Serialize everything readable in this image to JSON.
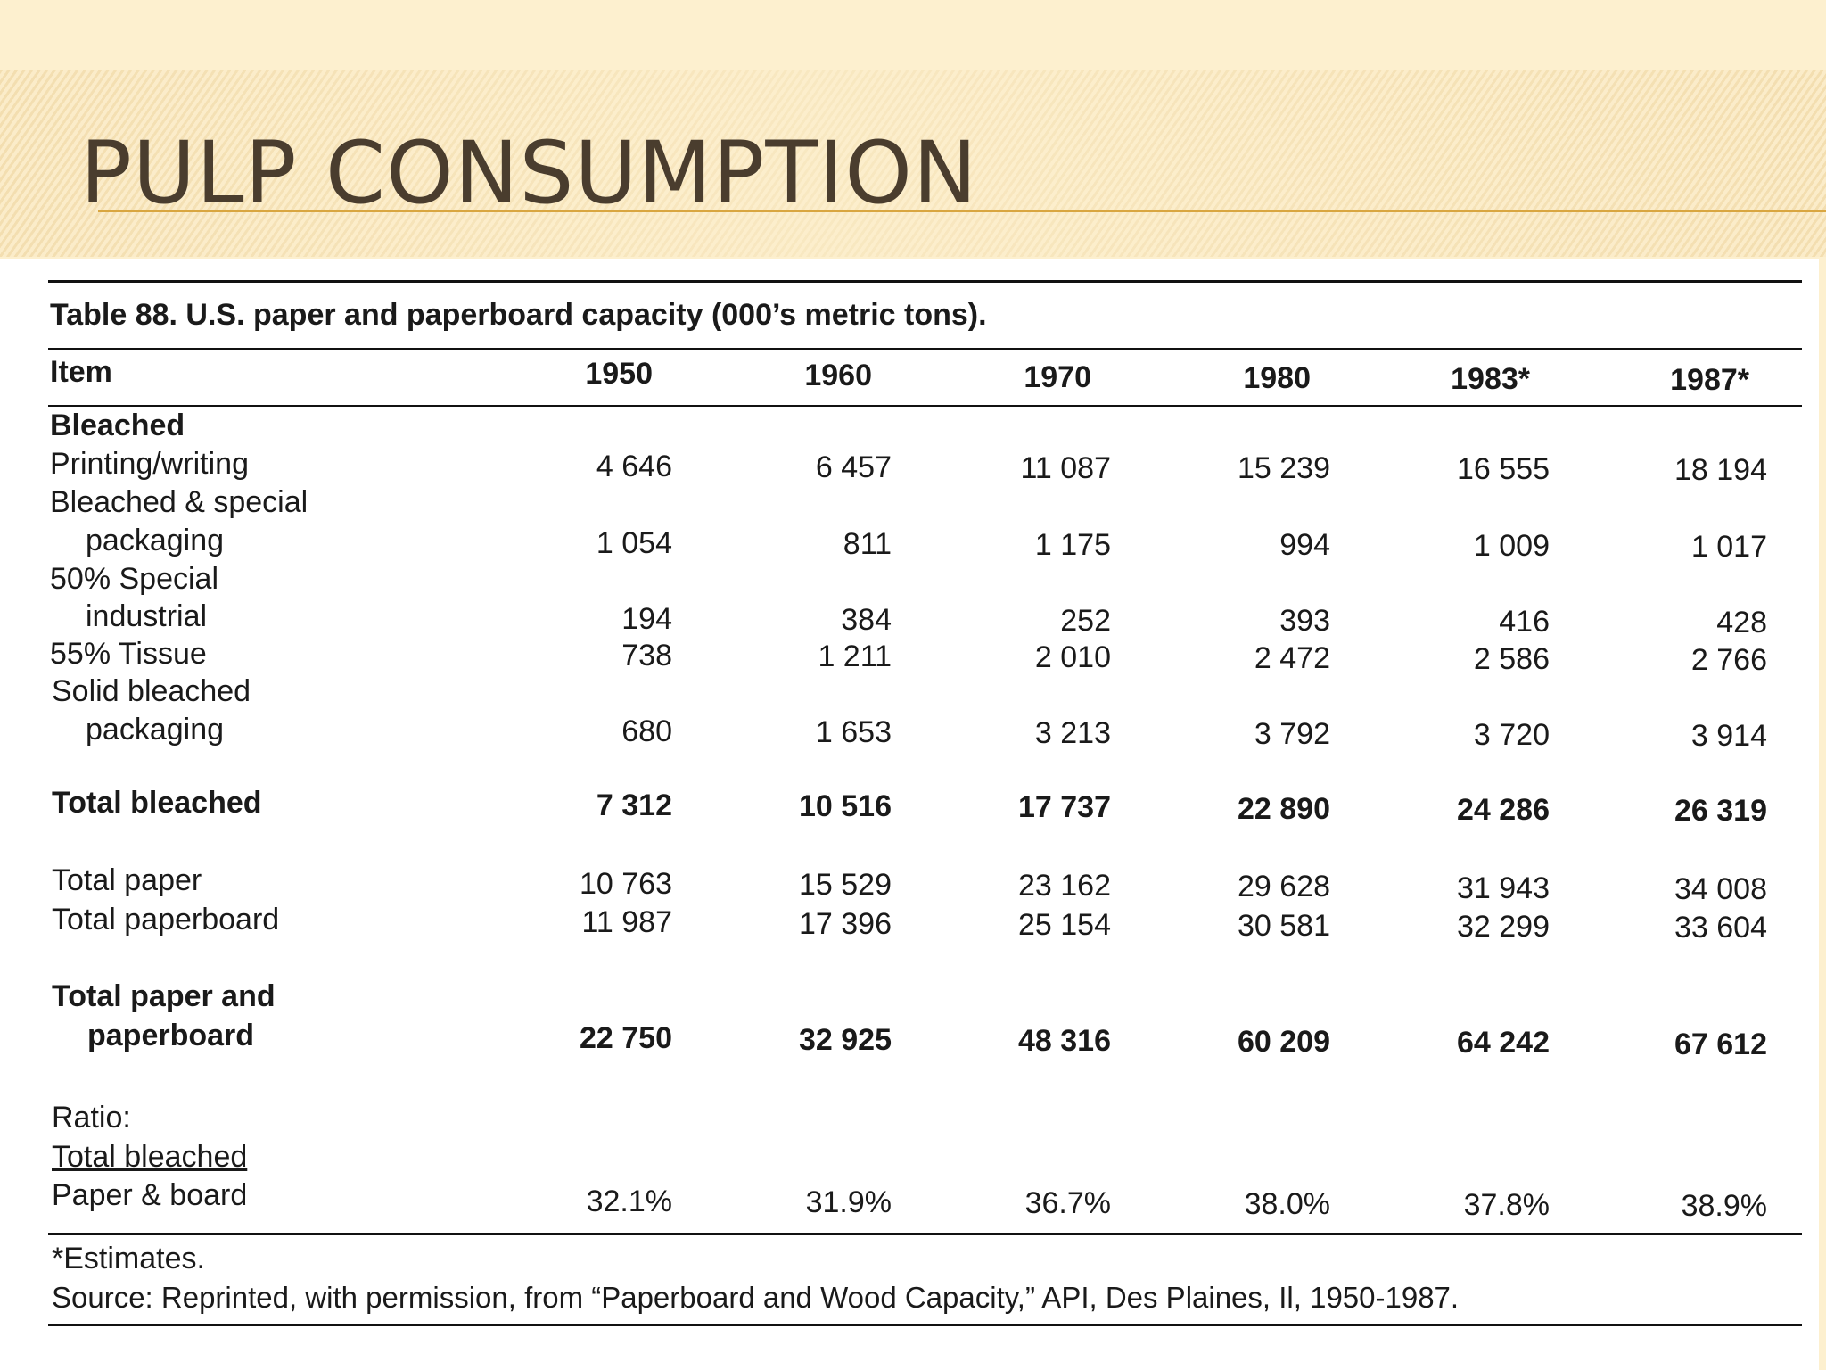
{
  "slide": {
    "title": "PULP CONSUMPTION"
  },
  "table": {
    "caption": "Table 88. U.S. paper and paperboard capacity (000’s metric tons).",
    "item_header": "Item",
    "columns": [
      "1950",
      "1960",
      "1970",
      "1980",
      "1983*",
      "1987*"
    ],
    "section_label": "Bleached",
    "rows": [
      {
        "label": [
          "Printing/writing"
        ],
        "values": [
          "4 646",
          "6 457",
          "11 087",
          "15 239",
          "16 555",
          "18 194"
        ]
      },
      {
        "label": [
          "Bleached & special",
          "packaging"
        ],
        "values": [
          "1 054",
          "811",
          "1 175",
          "994",
          "1 009",
          "1 017"
        ]
      },
      {
        "label": [
          "50% Special",
          "industrial"
        ],
        "values": [
          "194",
          "384",
          "252",
          "393",
          "416",
          "428"
        ]
      },
      {
        "label": [
          "55% Tissue"
        ],
        "values": [
          "738",
          "1 211",
          "2 010",
          "2 472",
          "2 586",
          "2 766"
        ]
      },
      {
        "label": [
          "Solid bleached",
          "packaging"
        ],
        "values": [
          "680",
          "1 653",
          "3 213",
          "3 792",
          "3 720",
          "3 914"
        ]
      },
      {
        "label": [
          "Total bleached"
        ],
        "values": [
          "7 312",
          "10 516",
          "17 737",
          "22 890",
          "24 286",
          "26 319"
        ]
      },
      {
        "label": [
          "Total paper"
        ],
        "values": [
          "10 763",
          "15 529",
          "23 162",
          "29 628",
          "31 943",
          "34 008"
        ]
      },
      {
        "label": [
          "Total paperboard"
        ],
        "values": [
          "11 987",
          "17 396",
          "25 154",
          "30 581",
          "32 299",
          "33 604"
        ]
      },
      {
        "label": [
          "Total paper and",
          "paperboard"
        ],
        "values": [
          "22 750",
          "32 925",
          "48 316",
          "60 209",
          "64 242",
          "67 612"
        ]
      },
      {
        "label": [
          "Ratio:",
          "Total bleached",
          "Paper & board"
        ],
        "values": [
          "32.1%",
          "31.9%",
          "36.7%",
          "38.0%",
          "37.8%",
          "38.9%"
        ]
      }
    ],
    "footnote": "*Estimates.",
    "source": "Source: Reprinted, with permission, from “Paperboard and Wood Capacity,” API, Des Plaines, Il, 1950-1987."
  }
}
